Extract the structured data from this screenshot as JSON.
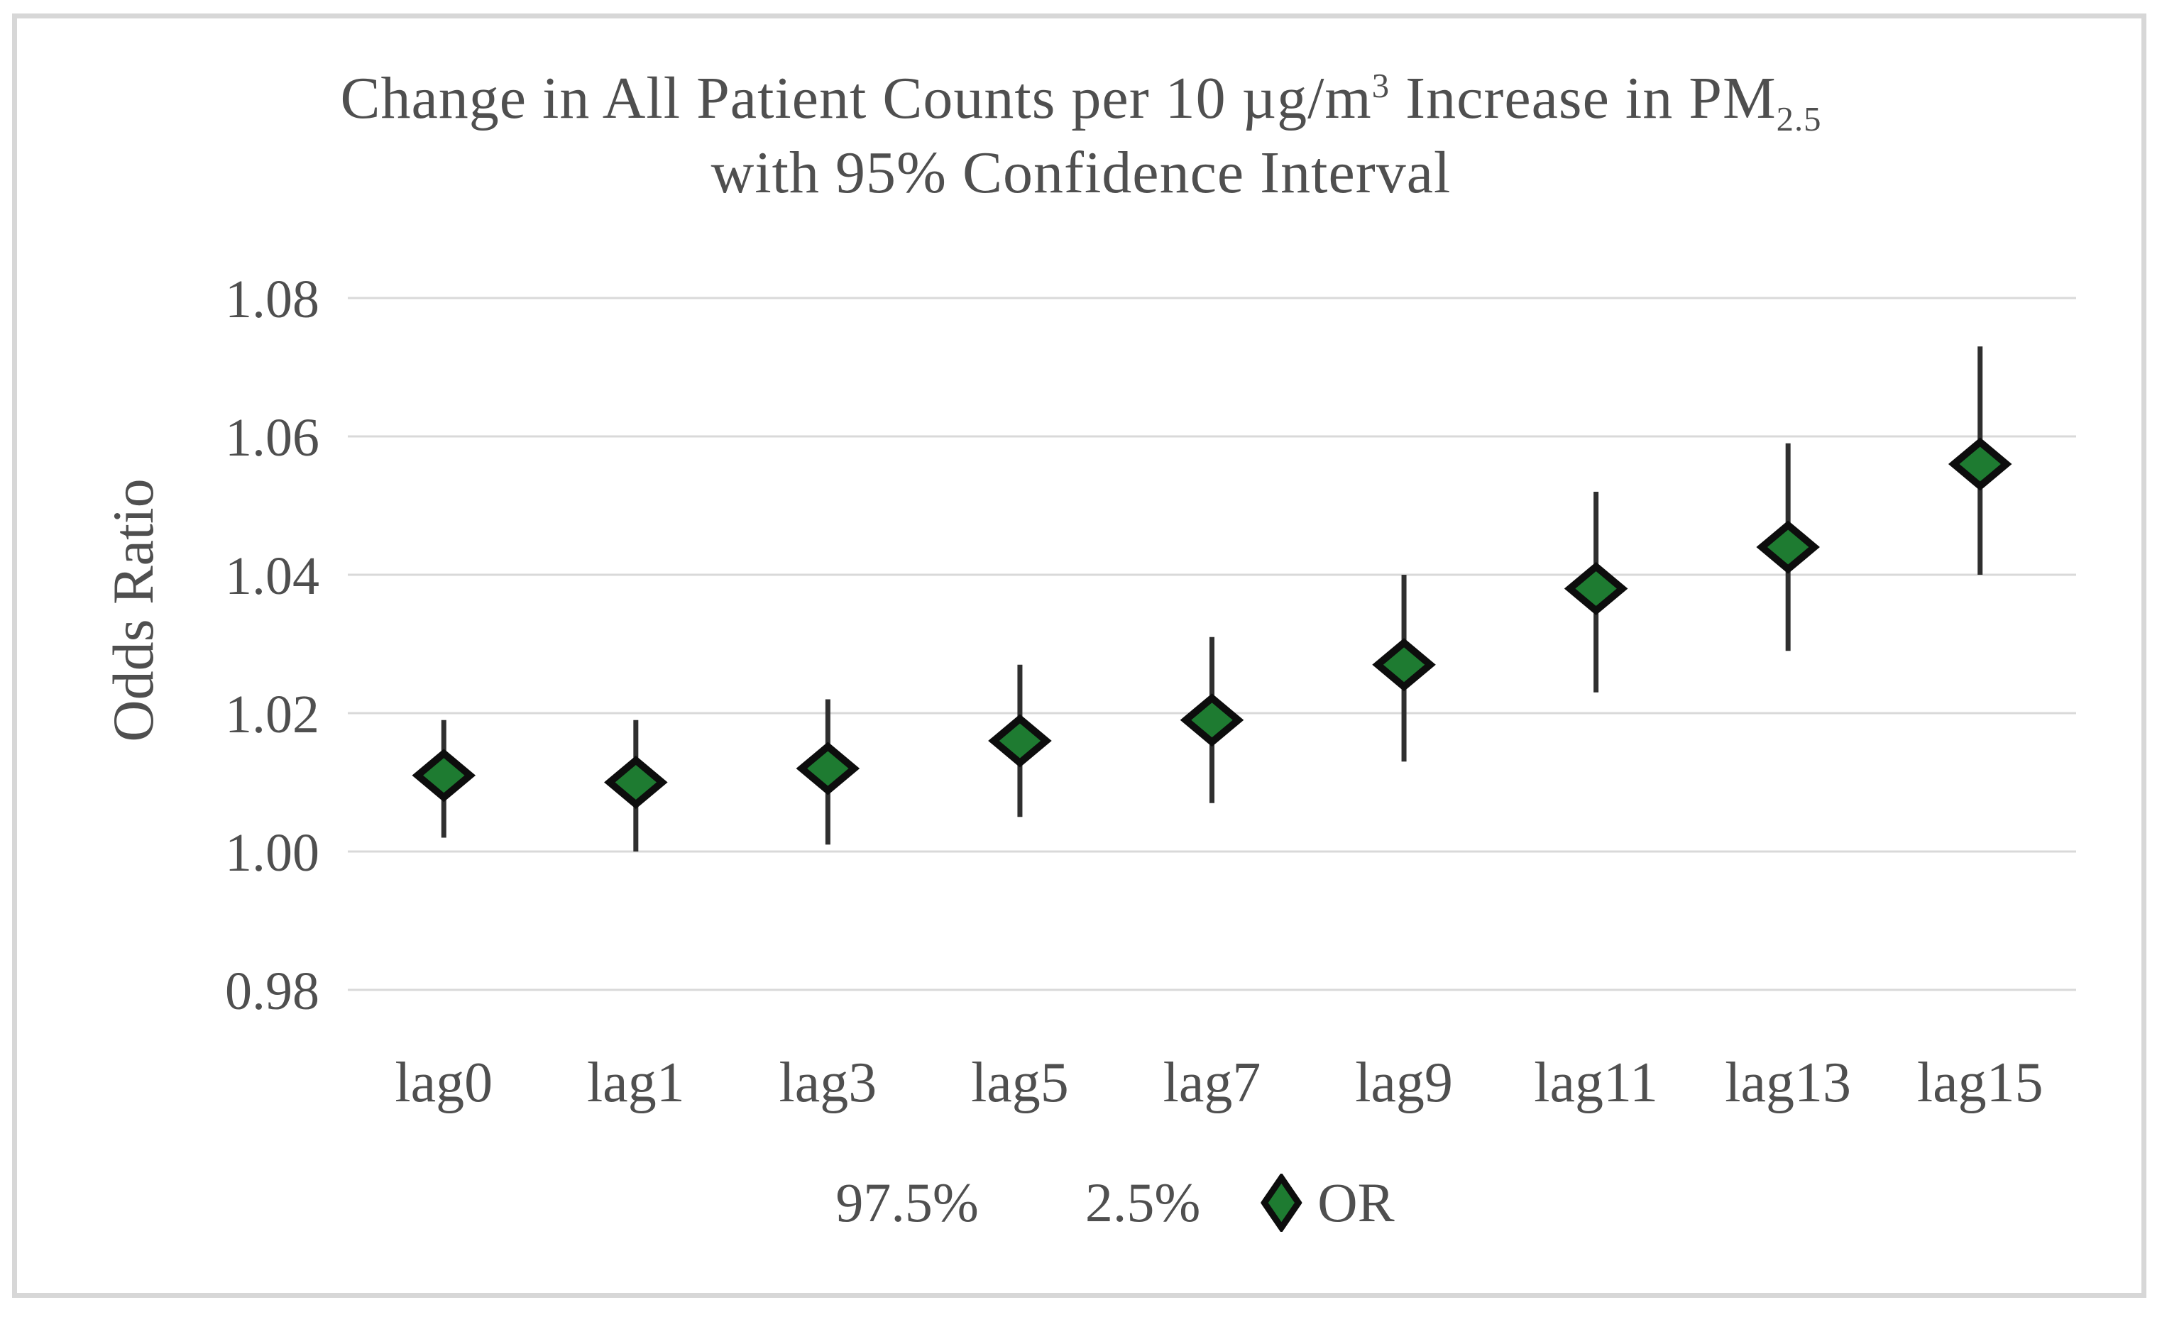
{
  "title": {
    "seg1": "Change in All Patient Counts per 10 µg/m",
    "sup": "3",
    "seg2": " Increase in PM",
    "sub": "2.5",
    "line2": "with 95% Confidence Interval"
  },
  "y_axis": {
    "label": "Odds Ratio"
  },
  "legend": {
    "p975": "97.5%",
    "p25": "2.5%",
    "or": "OR"
  },
  "chart_data": {
    "type": "scatter",
    "subtype": "point-with-error-bars",
    "title": "Change in All Patient Counts per 10 µg/m³ Increase in PM2.5 with 95% Confidence Interval",
    "xlabel": "",
    "ylabel": "Odds Ratio",
    "categories": [
      "lag0",
      "lag1",
      "lag3",
      "lag5",
      "lag7",
      "lag9",
      "lag11",
      "lag13",
      "lag15"
    ],
    "series": [
      {
        "name": "97.5%",
        "values": [
          1.019,
          1.019,
          1.022,
          1.027,
          1.031,
          1.04,
          1.052,
          1.059,
          1.073
        ]
      },
      {
        "name": "2.5%",
        "values": [
          1.002,
          1.0,
          1.001,
          1.005,
          1.007,
          1.013,
          1.023,
          1.029,
          1.04
        ]
      },
      {
        "name": "OR",
        "values": [
          1.011,
          1.01,
          1.012,
          1.016,
          1.019,
          1.027,
          1.038,
          1.044,
          1.056
        ]
      }
    ],
    "yticks": [
      0.98,
      1.0,
      1.02,
      1.04,
      1.06,
      1.08
    ],
    "ylim": [
      0.97,
      1.09
    ],
    "grid": true,
    "legend_position": "bottom",
    "marker": {
      "shape": "diamond",
      "fill": "#1e7b31",
      "stroke": "#0d0d0d"
    },
    "errorbar_color": "#2f2f2f",
    "gridline_color": "#d9d9d9",
    "text_color": "#4f4f4f"
  }
}
